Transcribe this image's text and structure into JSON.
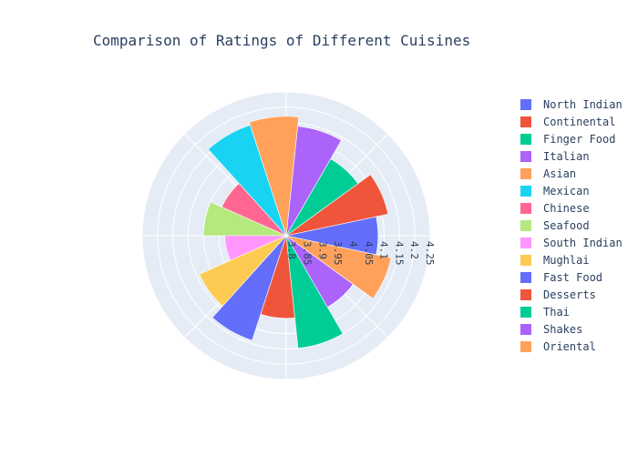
{
  "chart_data": {
    "type": "barpolar",
    "title": "Comparison of Ratings of Different Cuisines",
    "radial_range": [
      3.78,
      4.25
    ],
    "radial_ticks": [
      "3.8",
      "3.85",
      "3.9",
      "3.95",
      "4",
      "4.05",
      "4.1",
      "4.15",
      "4.2",
      "4.25"
    ],
    "grid": true,
    "legend_position": "right",
    "series": [
      {
        "name": "North Indian",
        "value": 4.08,
        "color": "#636efa"
      },
      {
        "name": "Continental",
        "value": 4.12,
        "color": "#EF553B"
      },
      {
        "name": "Finger Food",
        "value": 4.07,
        "color": "#00cc96"
      },
      {
        "name": "Italian",
        "value": 4.14,
        "color": "#ab63fa"
      },
      {
        "name": "Asian",
        "value": 4.17,
        "color": "#FFA15A"
      },
      {
        "name": "Mexican",
        "value": 4.16,
        "color": "#19d3f3"
      },
      {
        "name": "Chinese",
        "value": 4.01,
        "color": "#FF6692"
      },
      {
        "name": "Seafood",
        "value": 4.05,
        "color": "#B6E880"
      },
      {
        "name": "South Indian",
        "value": 3.98,
        "color": "#FF97FF"
      },
      {
        "name": "Mughlai",
        "value": 4.09,
        "color": "#FECB52"
      },
      {
        "name": "Fast Food",
        "value": 4.14,
        "color": "#636efa"
      },
      {
        "name": "Desserts",
        "value": 4.05,
        "color": "#EF553B"
      },
      {
        "name": "Thai",
        "value": 4.15,
        "color": "#00cc96"
      },
      {
        "name": "Shakes",
        "value": 4.05,
        "color": "#ab63fa"
      },
      {
        "name": "Oriental",
        "value": 4.13,
        "color": "#FFA15A"
      }
    ]
  }
}
